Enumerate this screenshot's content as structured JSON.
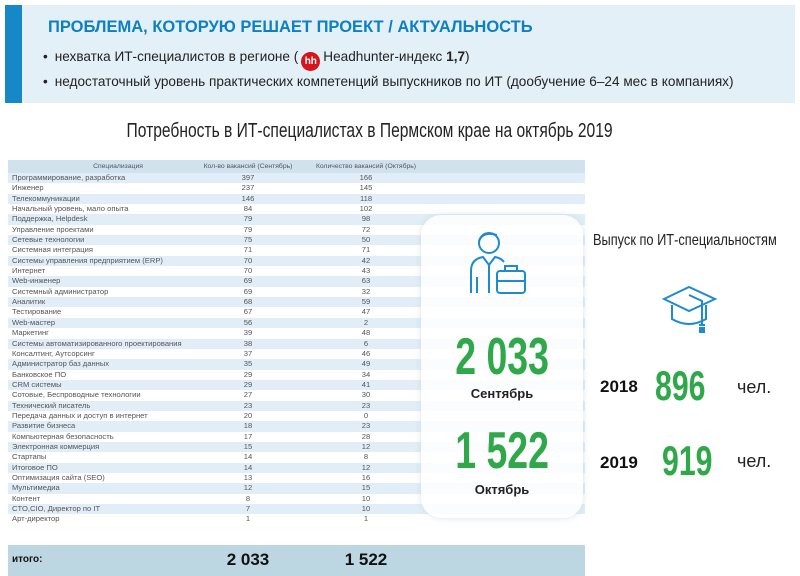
{
  "banner": {
    "title": "ПРОБЛЕМА, КОТОРУЮ РЕШАЕТ ПРОЕКТ / АКТУАЛЬНОСТЬ",
    "bullet1_pre": "нехватка ИТ-специалистов в регионе (",
    "hh_logo": "hh",
    "bullet1_mid": "Headhunter-индекс ",
    "bullet1_value": "1,7",
    "bullet1_post": ")",
    "bullet2": "недостаточный уровень практических компетенций выпускников по ИТ (дообучение 6–24 мес в компаниях)",
    "accent": "#1688c8"
  },
  "subtitle": "Потребность в ИТ-специалистах в Пермском крае на октябрь 2019",
  "table": {
    "headers": [
      "Специализация",
      "Кол-во вакансий (Сентябрь)",
      "Количество вакансий (Октябрь)"
    ],
    "rows": [
      [
        "Программирование, разработка",
        "397",
        "166"
      ],
      [
        "Инженер",
        "237",
        "145"
      ],
      [
        "Телекоммуникации",
        "146",
        "118"
      ],
      [
        "Начальный уровень, мало опыта",
        "84",
        "102"
      ],
      [
        "Поддержка, Helpdesk",
        "79",
        "98"
      ],
      [
        "Управление проектами",
        "79",
        "72"
      ],
      [
        "Сетевые технологии",
        "75",
        "50"
      ],
      [
        "Системная интеграция",
        "71",
        "71"
      ],
      [
        "Системы управления предприятием (ERP)",
        "70",
        "42"
      ],
      [
        "Интернет",
        "70",
        "43"
      ],
      [
        "Web-инженер",
        "69",
        "63"
      ],
      [
        "Системный администратор",
        "69",
        "32"
      ],
      [
        "Аналитик",
        "68",
        "59"
      ],
      [
        "Тестирование",
        "67",
        "47"
      ],
      [
        "Web-мастер",
        "56",
        "2"
      ],
      [
        "Маркетинг",
        "39",
        "48"
      ],
      [
        "Системы автоматизированного проектирования",
        "38",
        "6"
      ],
      [
        "Консалтинг, Аутсорсинг",
        "37",
        "46"
      ],
      [
        "Администратор баз данных",
        "35",
        "49"
      ],
      [
        "Банковское ПО",
        "29",
        "34"
      ],
      [
        "CRM системы",
        "29",
        "41"
      ],
      [
        "Сотовые, Беспроводные технологии",
        "27",
        "30"
      ],
      [
        "Технический писатель",
        "23",
        "23"
      ],
      [
        "Передача данных и доступ в интернет",
        "20",
        "0"
      ],
      [
        "Развитие бизнеса",
        "18",
        "23"
      ],
      [
        "Компьютерная безопасность",
        "17",
        "28"
      ],
      [
        "Электронная коммерция",
        "15",
        "12"
      ],
      [
        "Стартапы",
        "14",
        "8"
      ],
      [
        "Итоговое ПО",
        "14",
        "12"
      ],
      [
        "Оптимизация сайта (SEO)",
        "13",
        "16"
      ],
      [
        "Мультимедиа",
        "12",
        "15"
      ],
      [
        "Контент",
        "8",
        "10"
      ],
      [
        "CTO,CIO, Директор по IT",
        "7",
        "10"
      ],
      [
        "Арт-директор",
        "1",
        "1"
      ]
    ],
    "total_label": "итого:",
    "total_sep": "2 033",
    "total_oct": "1 522"
  },
  "card": {
    "icon": "businessman-briefcase-icon",
    "sep_value": "2 033",
    "sep_label": "Сентябрь",
    "oct_value": "1 522",
    "oct_label": "Октябрь",
    "value_color": "#2fa84a"
  },
  "graduates": {
    "title": "Выпуск по ИТ-специальностям",
    "icon": "graduation-cap-icon",
    "items": [
      {
        "year": "2018",
        "value": "896",
        "unit": "чел."
      },
      {
        "year": "2019",
        "value": "919",
        "unit": "чел."
      }
    ]
  }
}
